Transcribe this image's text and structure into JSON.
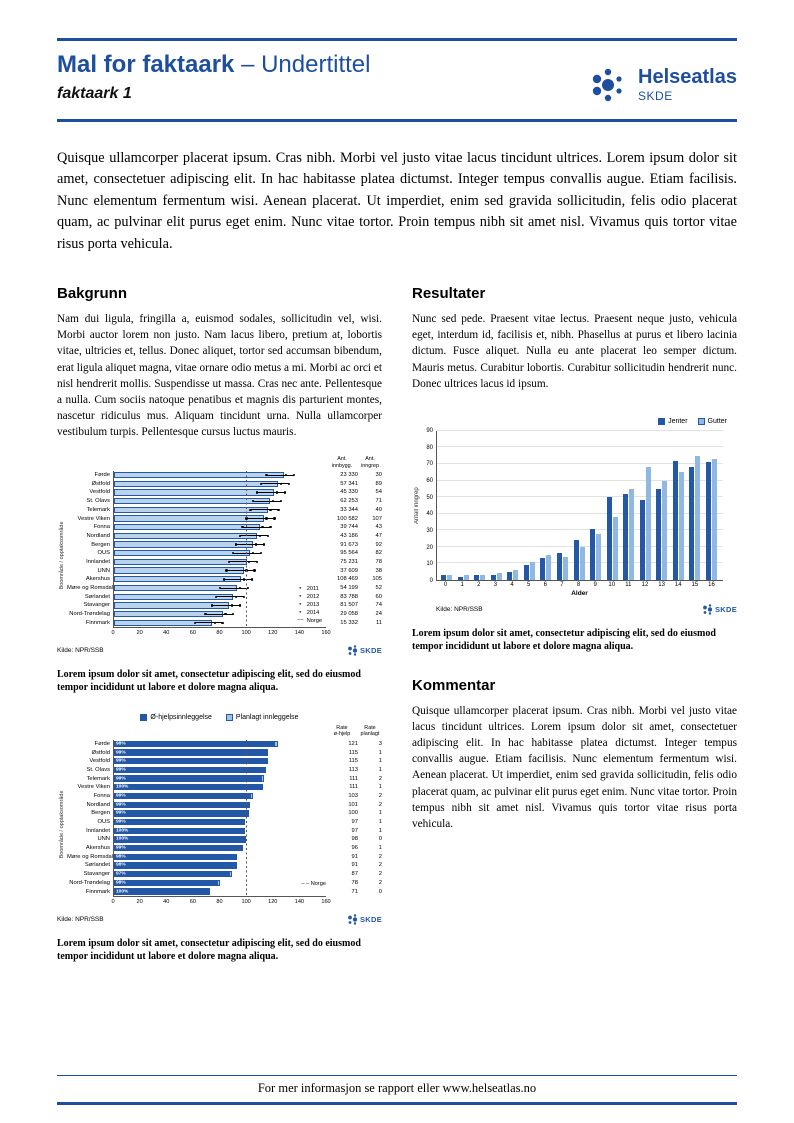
{
  "header": {
    "title": "Mal for faktaark",
    "title_suffix": " – Undertittel",
    "subtitle": "faktaark 1",
    "logo": {
      "name": "Helseatlas",
      "sub": "SKDE"
    }
  },
  "logos": {
    "skde": "SKDE"
  },
  "intro": "Quisque ullamcorper placerat ipsum. Cras nibh. Morbi vel justo vitae lacus tincidunt ultrices. Lorem ipsum dolor sit amet, consectetuer adipiscing elit. In hac habitasse platea dictumst. Integer tempus convallis augue. Etiam facilisis. Nunc elementum fermentum wisi. Aenean placerat. Ut imperdiet, enim sed gravida sollicitudin, felis odio placerat quam, ac pulvinar elit purus eget enim. Nunc vitae tortor. Proin tempus nibh sit amet nisl. Vivamus quis tortor vitae risus porta vehicula.",
  "sections": {
    "bakgrunn": {
      "heading": "Bakgrunn",
      "body": "Nam dui ligula, fringilla a, euismod sodales, sollicitudin vel, wisi. Morbi auctor lorem non justo. Nam lacus libero, pretium at, lobortis vitae, ultricies et, tellus. Donec aliquet, tortor sed accumsan bibendum, erat ligula aliquet magna, vitae ornare odio metus a mi. Morbi ac orci et nisl hendrerit mollis. Suspendisse ut massa. Cras nec ante. Pellentesque a nulla. Cum sociis natoque penatibus et magnis dis parturient montes, nascetur ridiculus mus. Aliquam tincidunt urna. Nulla ullamcorper vestibulum turpis. Pellentesque cursus luctus mauris."
    },
    "resultater": {
      "heading": "Resultater",
      "body": "Nunc sed pede. Praesent vitae lectus. Praesent neque justo, vehicula eget, interdum id, facilisis et, nibh. Phasellus at purus et libero lacinia dictum. Fusce aliquet. Nulla eu ante placerat leo semper dictum. Mauris metus. Curabitur lobortis. Curabitur sollicitudin hendrerit nunc. Donec ultrices lacus id ipsum."
    },
    "kommentar": {
      "heading": "Kommentar",
      "body": "Quisque ullamcorper placerat ipsum. Cras nibh. Morbi vel justo vitae lacus tincidunt ultrices. Lorem ipsum dolor sit amet, consectetuer adipiscing elit. In hac habitasse platea dictumst. Integer tempus convallis augue. Etiam facilisis. Nunc elementum fermentum wisi. Aenean placerat. Ut imperdiet, enim sed gravida sollicitudin, felis odio placerat quam, ac pulvinar elit purus eget enim. Nunc vitae tortor. Proin tempus nibh sit amet nisl. Vivamus quis tortor vitae risus porta vehicula."
    }
  },
  "captions": {
    "chart1": "Lorem ipsum dolor sit amet, consectetur adipiscing elit, sed do eiusmod tempor incididunt ut labore et dolore magna aliqua.",
    "chart2": "Lorem ipsum dolor sit amet, consectetur adipiscing elit, sed do eiusmod tempor incididunt ut labore et dolore magna aliqua.",
    "chart3": "Lorem ipsum dolor sit amet, consectetur adipiscing elit, sed do eiusmod tempor incididunt ut labore et dolore magna aliqua."
  },
  "footer": {
    "text": "For mer informasjon se rapport eller www.helseatlas.no"
  },
  "colors": {
    "brand_blue": "#1D4F9E",
    "bar_dark": "#2258A5",
    "bar_light": "#9DC3E6",
    "bar_pale": "#B9D3EC"
  },
  "chart_data": [
    {
      "type": "bar",
      "orientation": "horizontal",
      "ylabel": "Boområde / opptaksområde",
      "col_headers": [
        "Ant.\ninnbygg.",
        "Ant.\ninngrep"
      ],
      "xlim": [
        0,
        160
      ],
      "xticks": [
        0,
        20,
        40,
        60,
        80,
        100,
        120,
        140,
        160
      ],
      "norge_line": 100,
      "legend": [
        "2011",
        "2012",
        "2013",
        "2014",
        "Norge"
      ],
      "source": "Kilde: NPR/SSB",
      "rows": [
        {
          "label": "Førde",
          "rate": 128,
          "innbygg": "23 330",
          "inngrep": "30"
        },
        {
          "label": "Østfold",
          "rate": 124,
          "innbygg": "57 341",
          "inngrep": "89"
        },
        {
          "label": "Vestfold",
          "rate": 121,
          "innbygg": "45 330",
          "inngrep": "54"
        },
        {
          "label": "St. Olavs",
          "rate": 118,
          "innbygg": "62 253",
          "inngrep": "71"
        },
        {
          "label": "Telemark",
          "rate": 116,
          "innbygg": "33 344",
          "inngrep": "40"
        },
        {
          "label": "Vestre Viken",
          "rate": 113,
          "innbygg": "100 582",
          "inngrep": "107"
        },
        {
          "label": "Fonna",
          "rate": 110,
          "innbygg": "39 744",
          "inngrep": "43"
        },
        {
          "label": "Nordland",
          "rate": 108,
          "innbygg": "43 186",
          "inngrep": "47"
        },
        {
          "label": "Bergen",
          "rate": 105,
          "innbygg": "91 673",
          "inngrep": "92"
        },
        {
          "label": "OUS",
          "rate": 103,
          "innbygg": "95 564",
          "inngrep": "82"
        },
        {
          "label": "Innlandet",
          "rate": 100,
          "innbygg": "75 231",
          "inngrep": "78"
        },
        {
          "label": "UNN",
          "rate": 98,
          "innbygg": "37 609",
          "inngrep": "38"
        },
        {
          "label": "Akershus",
          "rate": 96,
          "innbygg": "108 469",
          "inngrep": "105"
        },
        {
          "label": "Møre og Romsdal",
          "rate": 93,
          "innbygg": "54 199",
          "inngrep": "52"
        },
        {
          "label": "Sørlandet",
          "rate": 90,
          "innbygg": "83 788",
          "inngrep": "60"
        },
        {
          "label": "Stavanger",
          "rate": 87,
          "innbygg": "81 507",
          "inngrep": "74"
        },
        {
          "label": "Nord-Trøndelag",
          "rate": 82,
          "innbygg": "29 058",
          "inngrep": "24"
        },
        {
          "label": "Finnmark",
          "rate": 74,
          "innbygg": "15 332",
          "inngrep": "11"
        }
      ]
    },
    {
      "type": "bar",
      "orientation": "horizontal",
      "stacked": true,
      "ylabel": "Boområde / opptaksområde",
      "col_headers": [
        "Rate\nø-hjelp",
        "Rate\nplanlagt"
      ],
      "xlim": [
        0,
        160
      ],
      "xticks": [
        0,
        20,
        40,
        60,
        80,
        100,
        120,
        140,
        160
      ],
      "norge_line": 100,
      "norge_label": "Norge",
      "series": [
        {
          "name": "Ø-hjelpsinnleggelse"
        },
        {
          "name": "Planlagt innleggelse"
        }
      ],
      "source": "Kilde: NPR/SSB",
      "rows": [
        {
          "label": "Førde",
          "pct": "98%",
          "rate_ohjelp": 121,
          "rate_planlagt": 3
        },
        {
          "label": "Østfold",
          "pct": "99%",
          "rate_ohjelp": 115,
          "rate_planlagt": 1
        },
        {
          "label": "Vestfold",
          "pct": "99%",
          "rate_ohjelp": 115,
          "rate_planlagt": 1
        },
        {
          "label": "St. Olavs",
          "pct": "99%",
          "rate_ohjelp": 113,
          "rate_planlagt": 1
        },
        {
          "label": "Telemark",
          "pct": "99%",
          "rate_ohjelp": 111,
          "rate_planlagt": 2
        },
        {
          "label": "Vestre Viken",
          "pct": "100%",
          "rate_ohjelp": 111,
          "rate_planlagt": 1
        },
        {
          "label": "Fonna",
          "pct": "99%",
          "rate_ohjelp": 103,
          "rate_planlagt": 2
        },
        {
          "label": "Nordland",
          "pct": "99%",
          "rate_ohjelp": 101,
          "rate_planlagt": 2
        },
        {
          "label": "Bergen",
          "pct": "99%",
          "rate_ohjelp": 100,
          "rate_planlagt": 1
        },
        {
          "label": "OUS",
          "pct": "99%",
          "rate_ohjelp": 97,
          "rate_planlagt": 1
        },
        {
          "label": "Innlandet",
          "pct": "100%",
          "rate_ohjelp": 97,
          "rate_planlagt": 1
        },
        {
          "label": "UNN",
          "pct": "100%",
          "rate_ohjelp": 98,
          "rate_planlagt": 0
        },
        {
          "label": "Akershus",
          "pct": "99%",
          "rate_ohjelp": 96,
          "rate_planlagt": 1
        },
        {
          "label": "Møre og Romsdal",
          "pct": "98%",
          "rate_ohjelp": 91,
          "rate_planlagt": 2
        },
        {
          "label": "Sørlandet",
          "pct": "98%",
          "rate_ohjelp": 91,
          "rate_planlagt": 2
        },
        {
          "label": "Stavanger",
          "pct": "97%",
          "rate_ohjelp": 87,
          "rate_planlagt": 2
        },
        {
          "label": "Nord-Trøndelag",
          "pct": "98%",
          "rate_ohjelp": 78,
          "rate_planlagt": 2
        },
        {
          "label": "Finnmark",
          "pct": "100%",
          "rate_ohjelp": 71,
          "rate_planlagt": 0
        }
      ]
    },
    {
      "type": "bar",
      "orientation": "vertical",
      "xlabel": "Alder",
      "ylabel": "Antall inngrep",
      "ylim": [
        0,
        90
      ],
      "yticks": [
        0,
        10,
        20,
        30,
        40,
        50,
        60,
        70,
        80,
        90
      ],
      "categories": [
        "0",
        "1",
        "2",
        "3",
        "4",
        "5",
        "6",
        "7",
        "8",
        "9",
        "10",
        "11",
        "12",
        "13",
        "14",
        "15",
        "16"
      ],
      "series": [
        {
          "name": "Jenter",
          "values": [
            3,
            2,
            3,
            3,
            5,
            9,
            13,
            16,
            24,
            31,
            50,
            52,
            48,
            55,
            72,
            68,
            71
          ]
        },
        {
          "name": "Gutter",
          "values": [
            3,
            3,
            3,
            4,
            6,
            11,
            15,
            14,
            20,
            28,
            38,
            55,
            68,
            60,
            65,
            75,
            73
          ]
        }
      ],
      "source": "Kilde: NPR/SSB"
    }
  ]
}
